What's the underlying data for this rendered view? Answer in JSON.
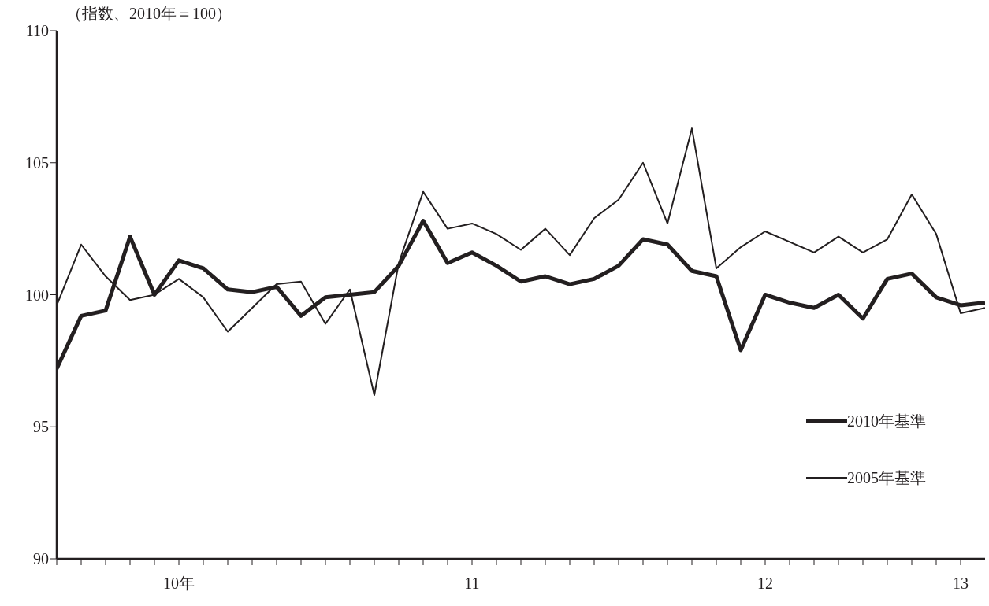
{
  "chart_data": {
    "type": "line",
    "ylabel": "（指数、2010年＝100）",
    "x": [
      "2010-01",
      "2010-02",
      "2010-03",
      "2010-04",
      "2010-05",
      "2010-06",
      "2010-07",
      "2010-08",
      "2010-09",
      "2010-10",
      "2010-11",
      "2010-12",
      "2011-01",
      "2011-02",
      "2011-03",
      "2011-04",
      "2011-05",
      "2011-06",
      "2011-07",
      "2011-08",
      "2011-09",
      "2011-10",
      "2011-11",
      "2011-12",
      "2012-01",
      "2012-02",
      "2012-03",
      "2012-04",
      "2012-05",
      "2012-06",
      "2012-07",
      "2012-08",
      "2012-09",
      "2012-10",
      "2012-11",
      "2012-12",
      "2013-01",
      "2013-02",
      "2013-03"
    ],
    "series": [
      {
        "name": "2010年基準",
        "color": "#231f20",
        "values": [
          97.2,
          99.2,
          99.4,
          102.2,
          100.0,
          101.3,
          101.0,
          100.2,
          100.1,
          100.3,
          99.2,
          99.9,
          100.0,
          100.1,
          101.1,
          102.8,
          101.2,
          101.6,
          101.1,
          100.5,
          100.7,
          100.4,
          100.6,
          101.1,
          102.1,
          101.9,
          100.9,
          100.7,
          97.9,
          100.0,
          99.7,
          99.5,
          100.0,
          99.1,
          100.6,
          100.8,
          99.9,
          99.6,
          99.7
        ]
      },
      {
        "name": "2005年基準",
        "color": "#231f20",
        "values": [
          99.6,
          101.9,
          100.7,
          99.8,
          100.0,
          100.6,
          99.9,
          98.6,
          99.5,
          100.4,
          100.5,
          98.9,
          100.2,
          96.2,
          101.2,
          103.9,
          102.5,
          102.7,
          102.3,
          101.7,
          102.5,
          101.5,
          102.9,
          103.6,
          105.0,
          102.7,
          106.3,
          101.0,
          101.8,
          102.4,
          102.0,
          101.6,
          102.2,
          101.6,
          102.1,
          103.8,
          102.3,
          99.3,
          99.5
        ]
      }
    ],
    "xlim": [
      "2010-01",
      "2013-03"
    ],
    "xticks": [
      {
        "value": "2010-01",
        "label": null
      },
      {
        "value": "2010-02",
        "label": null
      },
      {
        "value": "2010-03",
        "label": null
      },
      {
        "value": "2010-04",
        "label": null
      },
      {
        "value": "2010-05",
        "label": null
      },
      {
        "value": "2010-06",
        "label": "10年"
      },
      {
        "value": "2010-07",
        "label": null
      },
      {
        "value": "2010-08",
        "label": null
      },
      {
        "value": "2010-09",
        "label": null
      },
      {
        "value": "2010-10",
        "label": null
      },
      {
        "value": "2010-11",
        "label": null
      },
      {
        "value": "2010-12",
        "label": null
      },
      {
        "value": "2011-01",
        "label": null
      },
      {
        "value": "2011-02",
        "label": null
      },
      {
        "value": "2011-03",
        "label": null
      },
      {
        "value": "2011-04",
        "label": null
      },
      {
        "value": "2011-05",
        "label": null
      },
      {
        "value": "2011-06",
        "label": "11"
      },
      {
        "value": "2011-07",
        "label": null
      },
      {
        "value": "2011-08",
        "label": null
      },
      {
        "value": "2011-09",
        "label": null
      },
      {
        "value": "2011-10",
        "label": null
      },
      {
        "value": "2011-11",
        "label": null
      },
      {
        "value": "2011-12",
        "label": null
      },
      {
        "value": "2012-01",
        "label": null
      },
      {
        "value": "2012-02",
        "label": null
      },
      {
        "value": "2012-03",
        "label": null
      },
      {
        "value": "2012-04",
        "label": null
      },
      {
        "value": "2012-05",
        "label": null
      },
      {
        "value": "2012-06",
        "label": "12"
      },
      {
        "value": "2012-07",
        "label": null
      },
      {
        "value": "2012-08",
        "label": null
      },
      {
        "value": "2012-09",
        "label": null
      },
      {
        "value": "2012-10",
        "label": null
      },
      {
        "value": "2012-11",
        "label": null
      },
      {
        "value": "2012-12",
        "label": null
      },
      {
        "value": "2013-01",
        "label": null
      },
      {
        "value": "2013-02",
        "label": "13"
      }
    ],
    "ylim": [
      90,
      110
    ],
    "yticks": [
      90,
      95,
      100,
      105,
      110
    ],
    "grid": false,
    "legend": "bottom right",
    "marker": "none",
    "line_style": "solid"
  }
}
